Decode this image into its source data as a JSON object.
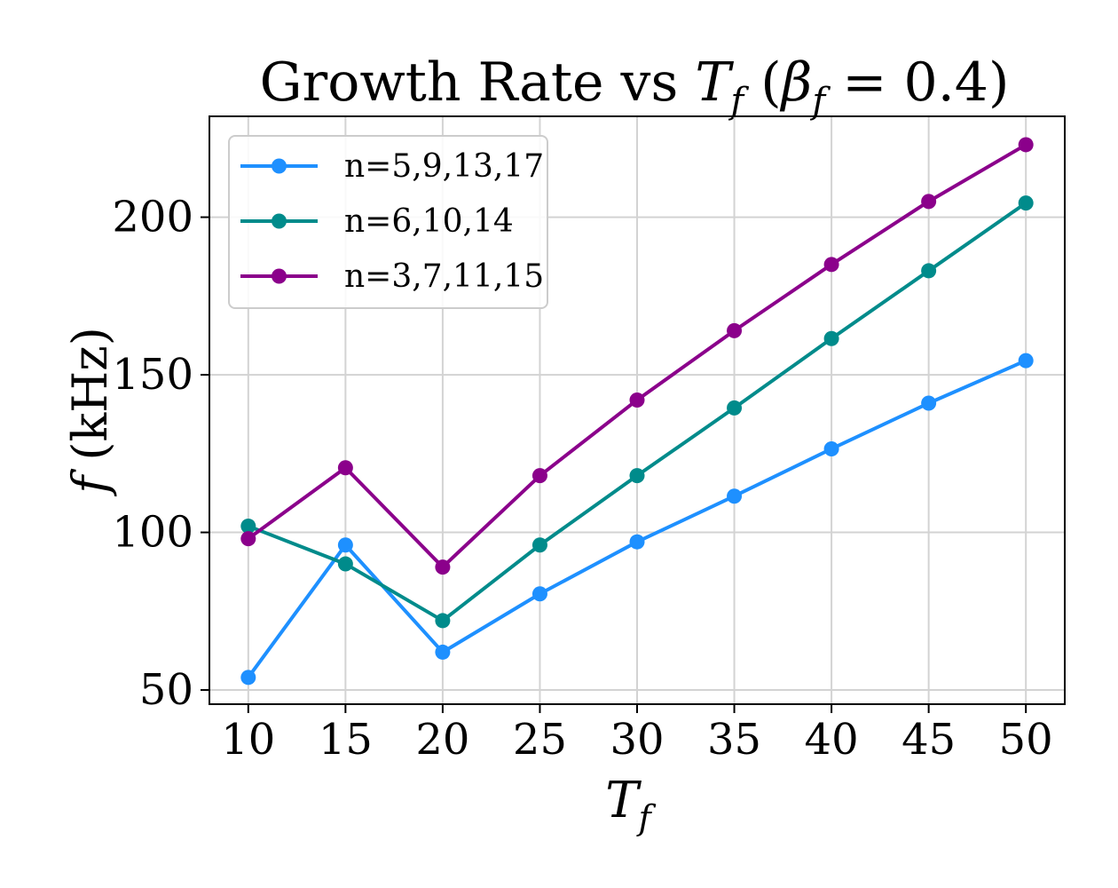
{
  "chart_data": {
    "type": "line",
    "title": {
      "prefix": "Growth Rate vs ",
      "t": "T",
      "t_sub": "f",
      "open": " (",
      "beta": "β",
      "beta_sub": "f",
      "eq": " = 0.4)"
    },
    "xlabel": {
      "main": "T",
      "sub": "f"
    },
    "ylabel": {
      "main": "f",
      "rest": " (kHz)"
    },
    "x": [
      10,
      15,
      20,
      25,
      30,
      35,
      40,
      45,
      50
    ],
    "xlim": [
      8,
      52
    ],
    "ylim": [
      45.5,
      232
    ],
    "xticks": [
      "10",
      "15",
      "20",
      "25",
      "30",
      "35",
      "40",
      "45",
      "50"
    ],
    "yticks": [
      "50",
      "100",
      "150",
      "200"
    ],
    "ytick_values": [
      50,
      100,
      150,
      200
    ],
    "grid": true,
    "legend_position": "top-left",
    "series": [
      {
        "name": "n=5,9,13,17",
        "color": "#1e90ff",
        "values": [
          54,
          96,
          62,
          80.5,
          97,
          111.5,
          126.5,
          141,
          154.5
        ]
      },
      {
        "name": "n=6,10,14",
        "color": "#008b8b",
        "values": [
          102,
          90,
          72,
          96,
          118,
          139.5,
          161.5,
          183,
          204.5
        ]
      },
      {
        "name": "n=3,7,11,15",
        "color": "#8b008b",
        "values": [
          98,
          120.5,
          89,
          118,
          142,
          164,
          185,
          205,
          223
        ]
      }
    ]
  }
}
